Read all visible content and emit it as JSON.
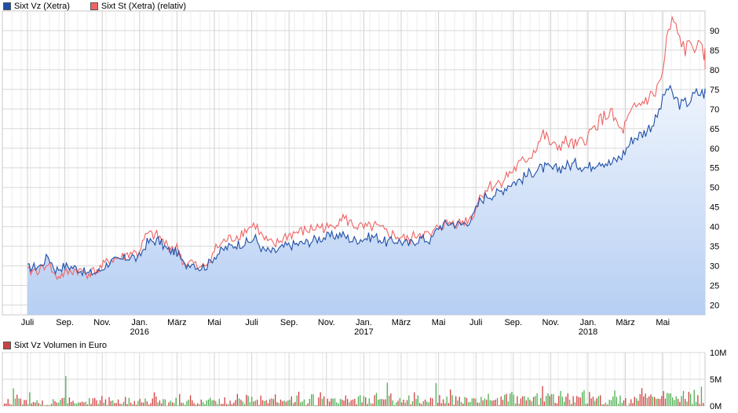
{
  "chart_data": [
    {
      "type": "line",
      "legend": [
        {
          "label": "Sixt Vz (Xetra)",
          "color": "#1f4fa8"
        },
        {
          "label": "Sixt St (Xetra) (relativ)",
          "color": "#f06464"
        }
      ],
      "x_month_labels": [
        "Juli",
        "Sep.",
        "Nov.",
        "Jan.",
        "März",
        "Mai",
        "Juli",
        "Sep.",
        "Nov.",
        "Jan.",
        "März",
        "Mai",
        "Juli",
        "Sep.",
        "Nov.",
        "Jan.",
        "März",
        "Mai"
      ],
      "x_year_labels": [
        {
          "label": "2016",
          "under": 3
        },
        {
          "label": "2017",
          "under": 9
        },
        {
          "label": "2018",
          "under": 15
        }
      ],
      "y_ticks": [
        "20",
        "25",
        "30",
        "35",
        "40",
        "45",
        "50",
        "55",
        "60",
        "65",
        "70",
        "75",
        "80",
        "85",
        "90"
      ],
      "ylim": [
        17.5,
        95
      ],
      "grid": true,
      "series": [
        {
          "name": "Sixt Vz (Xetra)",
          "color": "#1f4fa8",
          "fill": "#c9dcf7",
          "values": [
            [
              0,
              29.5
            ],
            [
              0.35,
              30
            ],
            [
              0.55,
              32.5
            ],
            [
              0.75,
              29
            ],
            [
              1.0,
              30
            ],
            [
              1.3,
              29.5
            ],
            [
              1.6,
              28
            ],
            [
              1.9,
              28.5
            ],
            [
              2.2,
              31
            ],
            [
              2.5,
              31.5
            ],
            [
              2.8,
              32.5
            ],
            [
              2.95,
              31.5
            ],
            [
              3.2,
              36
            ],
            [
              3.5,
              36.5
            ],
            [
              3.75,
              34
            ],
            [
              4.0,
              33.5
            ],
            [
              4.2,
              30
            ],
            [
              4.4,
              31
            ],
            [
              4.6,
              29.5
            ],
            [
              4.8,
              30
            ],
            [
              5.0,
              32.5
            ],
            [
              5.3,
              34.5
            ],
            [
              5.6,
              35.5
            ],
            [
              5.9,
              36
            ],
            [
              6.1,
              37
            ],
            [
              6.3,
              34
            ],
            [
              6.6,
              33.5
            ],
            [
              6.9,
              35
            ],
            [
              7.2,
              35.5
            ],
            [
              7.5,
              36
            ],
            [
              7.8,
              37
            ],
            [
              8.1,
              37.5
            ],
            [
              8.4,
              38
            ],
            [
              8.7,
              36.5
            ],
            [
              9.0,
              37
            ],
            [
              9.3,
              37.5
            ],
            [
              9.6,
              36
            ],
            [
              9.9,
              36.5
            ],
            [
              10.2,
              35.5
            ],
            [
              10.5,
              37
            ],
            [
              10.8,
              36.5
            ],
            [
              11.0,
              40
            ],
            [
              11.3,
              41
            ],
            [
              11.6,
              40.5
            ],
            [
              11.9,
              42
            ],
            [
              12.1,
              46.5
            ],
            [
              12.3,
              48
            ],
            [
              12.6,
              48.5
            ],
            [
              12.9,
              51
            ],
            [
              13.2,
              52
            ],
            [
              13.5,
              54
            ],
            [
              13.8,
              55
            ],
            [
              14.1,
              54.5
            ],
            [
              14.4,
              55.5
            ],
            [
              14.7,
              56
            ],
            [
              15.0,
              55
            ],
            [
              15.3,
              57
            ],
            [
              15.6,
              56
            ],
            [
              15.9,
              58
            ],
            [
              16.2,
              62.5
            ],
            [
              16.5,
              64
            ],
            [
              16.8,
              67
            ],
            [
              17.0,
              72
            ],
            [
              17.1,
              75.5
            ],
            [
              17.3,
              73
            ],
            [
              17.5,
              71
            ],
            [
              17.7,
              72
            ],
            [
              17.9,
              74
            ],
            [
              18.1,
              74
            ],
            [
              18.25,
              75
            ],
            [
              18.35,
              74.5
            ]
          ]
        },
        {
          "name": "Sixt St (Xetra) (relativ)",
          "color": "#f06464",
          "values": [
            [
              0,
              28.5
            ],
            [
              0.35,
              29
            ],
            [
              0.55,
              31
            ],
            [
              0.75,
              27
            ],
            [
              1.0,
              28
            ],
            [
              1.3,
              29
            ],
            [
              1.6,
              28
            ],
            [
              1.9,
              29
            ],
            [
              2.2,
              31.5
            ],
            [
              2.5,
              32
            ],
            [
              2.8,
              33.5
            ],
            [
              2.95,
              33
            ],
            [
              3.2,
              38
            ],
            [
              3.5,
              37.5
            ],
            [
              3.75,
              35
            ],
            [
              4.0,
              34.5
            ],
            [
              4.2,
              30.5
            ],
            [
              4.4,
              31
            ],
            [
              4.6,
              29
            ],
            [
              4.8,
              30.5
            ],
            [
              5.0,
              34
            ],
            [
              5.3,
              36.5
            ],
            [
              5.6,
              37.5
            ],
            [
              5.9,
              39.5
            ],
            [
              6.1,
              40.5
            ],
            [
              6.3,
              37
            ],
            [
              6.6,
              35
            ],
            [
              6.9,
              37.5
            ],
            [
              7.2,
              38.5
            ],
            [
              7.5,
              39
            ],
            [
              7.8,
              40
            ],
            [
              8.1,
              39.5
            ],
            [
              8.4,
              42.5
            ],
            [
              8.7,
              40.5
            ],
            [
              9.0,
              39.5
            ],
            [
              9.3,
              40
            ],
            [
              9.6,
              38.5
            ],
            [
              9.9,
              37.5
            ],
            [
              10.2,
              36.5
            ],
            [
              10.5,
              38.5
            ],
            [
              10.8,
              37.5
            ],
            [
              11.0,
              40
            ],
            [
              11.3,
              41
            ],
            [
              11.6,
              41
            ],
            [
              11.9,
              42.5
            ],
            [
              12.1,
              47.5
            ],
            [
              12.3,
              50
            ],
            [
              12.6,
              51
            ],
            [
              12.9,
              53.5
            ],
            [
              13.2,
              56
            ],
            [
              13.5,
              58.5
            ],
            [
              13.8,
              63.5
            ],
            [
              14.1,
              60
            ],
            [
              14.4,
              61.5
            ],
            [
              14.7,
              60.5
            ],
            [
              15.0,
              63
            ],
            [
              15.3,
              67
            ],
            [
              15.6,
              69
            ],
            [
              15.9,
              64
            ],
            [
              16.2,
              69.5
            ],
            [
              16.5,
              72
            ],
            [
              16.8,
              74
            ],
            [
              17.0,
              79
            ],
            [
              17.1,
              87
            ],
            [
              17.25,
              92.5
            ],
            [
              17.4,
              89
            ],
            [
              17.6,
              85
            ],
            [
              17.75,
              86.5
            ],
            [
              17.9,
              86
            ],
            [
              18.1,
              84
            ],
            [
              18.35,
              81.5
            ]
          ]
        }
      ]
    },
    {
      "type": "bar",
      "legend": [
        {
          "label": "Sixt Vz Volumen in Euro",
          "color": "#c84444"
        }
      ],
      "y_ticks": [
        "0M",
        "5M",
        "10M"
      ],
      "ylim": [
        0,
        10
      ],
      "series": [
        {
          "name": "Sixt Vz Volumen in Euro",
          "colors": [
            "#4caf50",
            "#d04040"
          ]
        }
      ]
    }
  ]
}
